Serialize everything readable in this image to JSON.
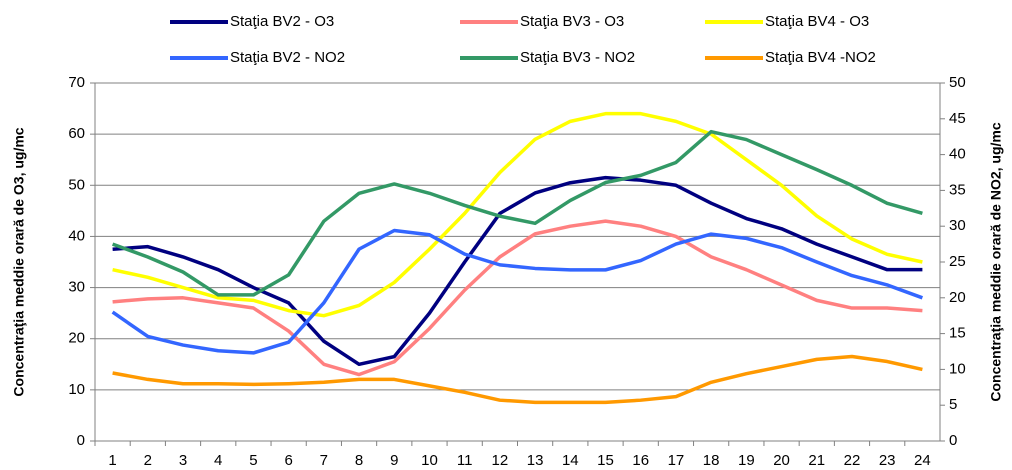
{
  "chart_data": {
    "type": "line",
    "y_label": "Concentraţia meddie orară de O3, ug/mc",
    "y2_label": "Concentraţia meddie orară de NO2, ug/mc",
    "categories": [
      1,
      2,
      3,
      4,
      5,
      6,
      7,
      8,
      9,
      10,
      11,
      12,
      13,
      14,
      15,
      16,
      17,
      18,
      19,
      20,
      21,
      22,
      23,
      24
    ],
    "ylim": [
      0,
      70
    ],
    "yticks": [
      0,
      10,
      20,
      30,
      40,
      50,
      60,
      70
    ],
    "y2lim": [
      0,
      50
    ],
    "y2ticks": [
      0,
      5,
      10,
      15,
      20,
      25,
      30,
      35,
      40,
      45,
      50
    ],
    "grid": true,
    "legend": "top",
    "series": [
      {
        "name": "Staţia BV2 - O3",
        "color": "#000080",
        "values": [
          37.5,
          38,
          36,
          33.5,
          30,
          27,
          19.5,
          15,
          16.5,
          25,
          35,
          44.5,
          48.5,
          50.5,
          51.5,
          51,
          50,
          46.5,
          43.5,
          41.5,
          38.5,
          36,
          33.5,
          33.5
        ]
      },
      {
        "name": "Staţia BV3 - O3",
        "color": "#ff8080",
        "values": [
          27.2,
          27.8,
          28,
          27,
          26,
          21.5,
          15,
          13,
          15.5,
          22,
          29.5,
          36,
          40.5,
          42,
          43,
          42,
          40,
          36,
          33.5,
          30.5,
          27.5,
          26,
          26,
          25.5
        ]
      },
      {
        "name": "Staţia BV4 - O3",
        "color": "#ffff00",
        "values": [
          33.5,
          32,
          30,
          28,
          27.5,
          25.5,
          24.5,
          26.5,
          31,
          37.5,
          44.5,
          52.5,
          59,
          62.5,
          64,
          64,
          62.5,
          60,
          55,
          50,
          44,
          39.5,
          36.5,
          35
        ]
      },
      {
        "name": "Staţia BV2 - NO2",
        "color": "#3366ff",
        "axis": "y2",
        "values": [
          18,
          14.6,
          13.4,
          12.6,
          12.3,
          13.8,
          19.3,
          26.8,
          29.4,
          28.8,
          26.1,
          24.6,
          24.1,
          23.9,
          23.9,
          25.2,
          27.5,
          28.9,
          28.3,
          27,
          25,
          23.1,
          21.8,
          20
        ]
      },
      {
        "name": "Staţia BV3 - NO2",
        "color": "#339966",
        "axis": "y2",
        "values": [
          27.5,
          25.7,
          23.6,
          20.4,
          20.4,
          23.2,
          30.7,
          34.6,
          35.9,
          34.6,
          32.9,
          31.4,
          30.4,
          33.6,
          36.1,
          37.1,
          38.9,
          43.2,
          42.1,
          40,
          37.9,
          35.7,
          33.2,
          31.8
        ]
      },
      {
        "name": "Staţia BV4 -NO2",
        "color": "#ff9900",
        "axis": "y2",
        "values": [
          9.5,
          8.6,
          8,
          8,
          7.9,
          8,
          8.2,
          8.6,
          8.6,
          7.7,
          6.8,
          5.7,
          5.4,
          5.4,
          5.4,
          5.7,
          6.2,
          8.2,
          9.4,
          10.4,
          11.4,
          11.8,
          11.1,
          10
        ]
      }
    ]
  }
}
